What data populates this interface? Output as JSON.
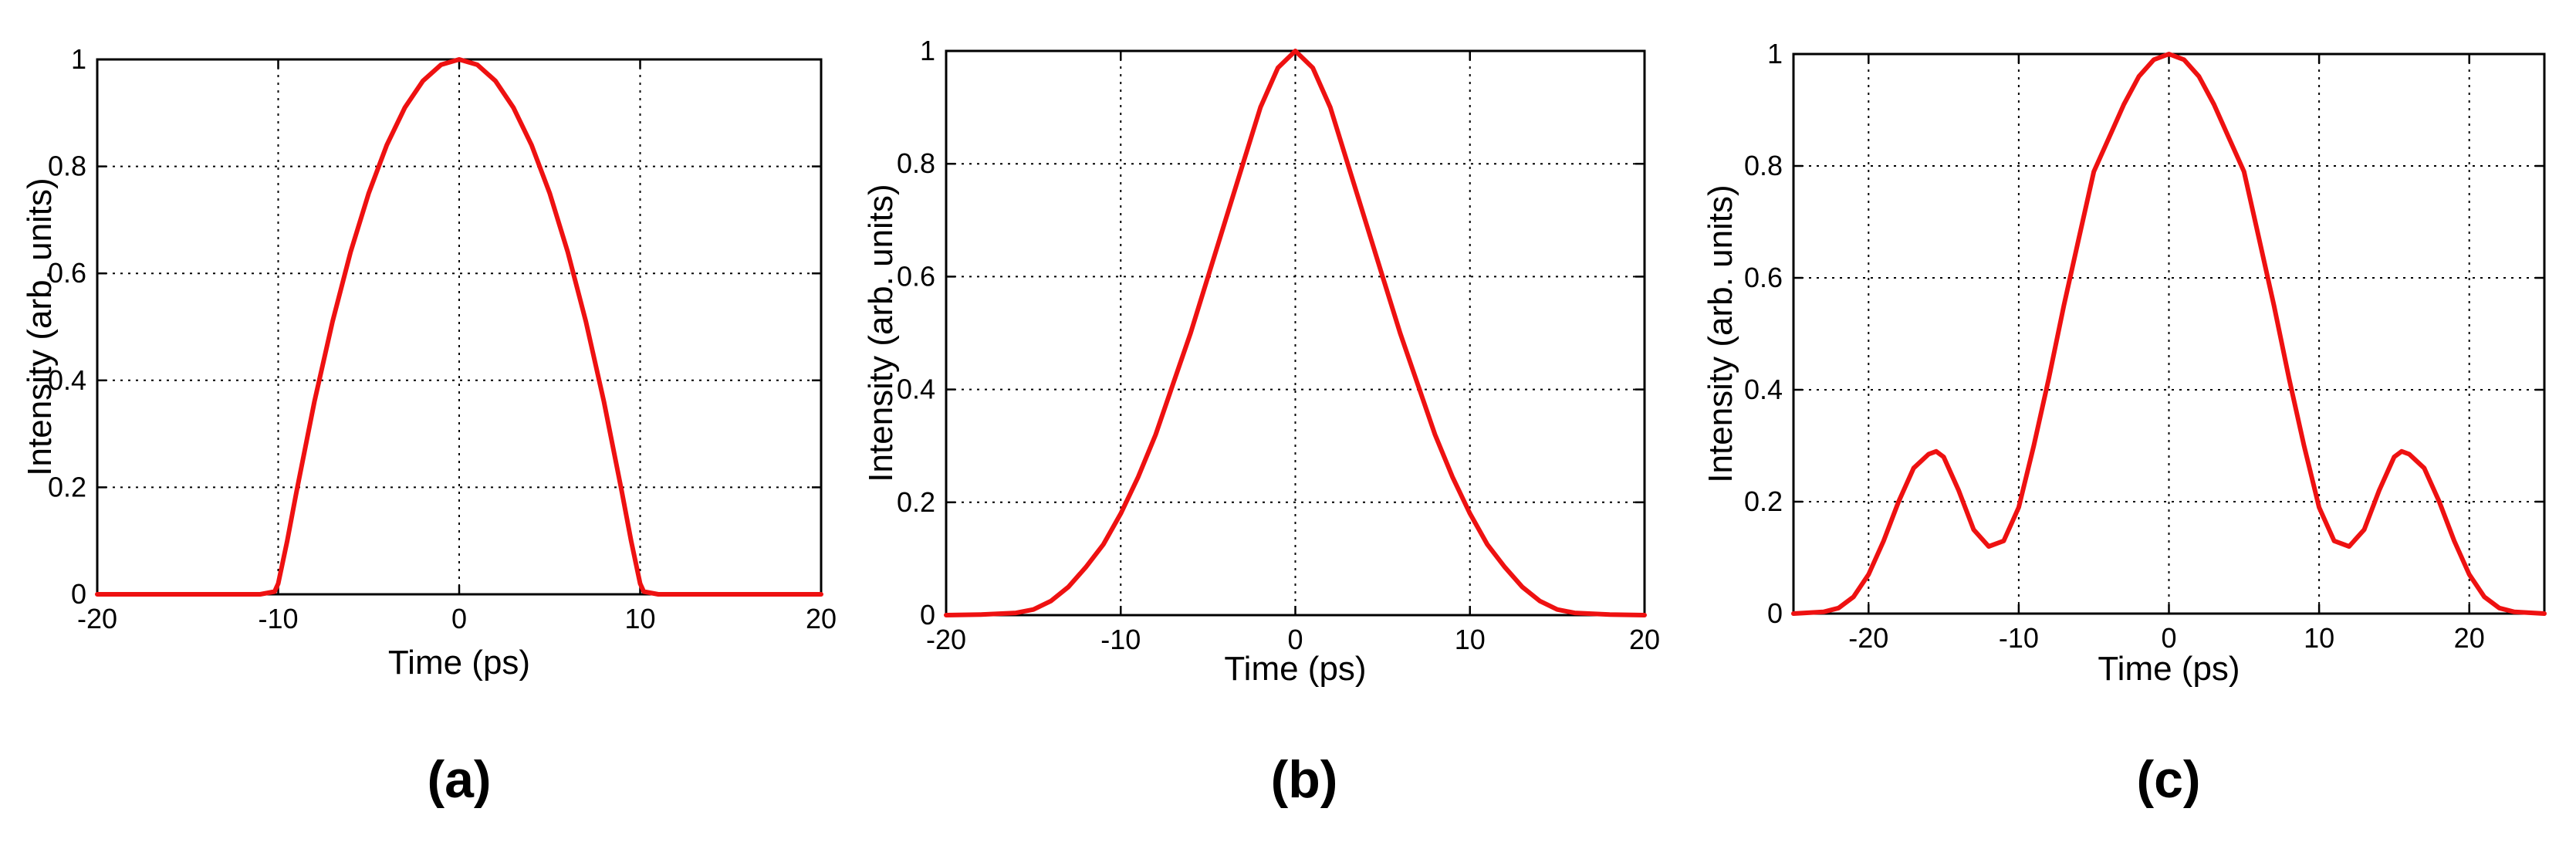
{
  "colors": {
    "curve": "#ee1111",
    "axis": "#000000",
    "background": "#ffffff"
  },
  "chart_data": [
    {
      "type": "line",
      "panel_label": "(a)",
      "xlabel": "Time (ps)",
      "ylabel": "Intensity (arb. units)",
      "xlim": [
        -20,
        20
      ],
      "ylim": [
        0,
        1
      ],
      "xticks": [
        -20,
        -10,
        0,
        10,
        20
      ],
      "xtick_labels": [
        "-20",
        "-10",
        "0",
        "10",
        "20"
      ],
      "yticks": [
        0,
        0.2,
        0.4,
        0.6,
        0.8,
        1
      ],
      "ytick_labels": [
        "0",
        "0.2",
        "0.4",
        "0.6",
        "0.8",
        "1"
      ],
      "grid": true,
      "series": [
        {
          "name": "intensity",
          "x": [
            -20,
            -15,
            -11,
            -10.2,
            -10,
            -9.5,
            -9,
            -8,
            -7,
            -6,
            -5,
            -4,
            -3,
            -2,
            -1,
            0,
            1,
            2,
            3,
            4,
            5,
            6,
            7,
            8,
            9,
            9.5,
            10,
            10.2,
            11,
            15,
            20
          ],
          "y": [
            0,
            0,
            0,
            0.005,
            0.02,
            0.1,
            0.19,
            0.36,
            0.51,
            0.64,
            0.75,
            0.84,
            0.91,
            0.96,
            0.99,
            1.0,
            0.99,
            0.96,
            0.91,
            0.84,
            0.75,
            0.64,
            0.51,
            0.36,
            0.19,
            0.1,
            0.02,
            0.005,
            0,
            0,
            0
          ]
        }
      ]
    },
    {
      "type": "line",
      "panel_label": "(b)",
      "xlabel": "Time (ps)",
      "ylabel": "Intensity (arb. units)",
      "xlim": [
        -20,
        20
      ],
      "ylim": [
        0,
        1
      ],
      "xticks": [
        -20,
        -10,
        0,
        10,
        20
      ],
      "xtick_labels": [
        "-20",
        "-10",
        "0",
        "10",
        "20"
      ],
      "yticks": [
        0,
        0.2,
        0.4,
        0.6,
        0.8,
        1
      ],
      "ytick_labels": [
        "0",
        "0.2",
        "0.4",
        "0.6",
        "0.8",
        "1"
      ],
      "grid": true,
      "series": [
        {
          "name": "intensity",
          "x": [
            -20,
            -18,
            -16,
            -15,
            -14,
            -13,
            -12,
            -11,
            -10,
            -9,
            -8,
            -7,
            -6,
            -5,
            -4,
            -3,
            -2,
            -1,
            0,
            1,
            2,
            3,
            4,
            5,
            6,
            7,
            8,
            9,
            10,
            11,
            12,
            13,
            14,
            15,
            16,
            18,
            20
          ],
          "y": [
            0,
            0.001,
            0.004,
            0.01,
            0.025,
            0.05,
            0.085,
            0.125,
            0.18,
            0.245,
            0.32,
            0.41,
            0.5,
            0.6,
            0.7,
            0.8,
            0.9,
            0.97,
            1.0,
            0.97,
            0.9,
            0.8,
            0.7,
            0.6,
            0.5,
            0.41,
            0.32,
            0.245,
            0.18,
            0.125,
            0.085,
            0.05,
            0.025,
            0.01,
            0.004,
            0.001,
            0
          ]
        }
      ]
    },
    {
      "type": "line",
      "panel_label": "(c)",
      "xlabel": "Time (ps)",
      "ylabel": "Intensity (arb. units)",
      "xlim": [
        -25,
        25
      ],
      "ylim": [
        0,
        1
      ],
      "xticks": [
        -20,
        -10,
        0,
        10,
        20
      ],
      "xtick_labels": [
        "-20",
        "-10",
        "0",
        "10",
        "20"
      ],
      "yticks": [
        0,
        0.2,
        0.4,
        0.6,
        0.8,
        1
      ],
      "ytick_labels": [
        "0",
        "0.2",
        "0.4",
        "0.6",
        "0.8",
        "1"
      ],
      "grid": true,
      "series": [
        {
          "name": "intensity",
          "x": [
            -25,
            -23,
            -22,
            -21,
            -20,
            -19,
            -18,
            -17,
            -16,
            -15.5,
            -15,
            -14,
            -13,
            -12,
            -11,
            -10,
            -9,
            -8,
            -7,
            -6,
            -5,
            -4,
            -3,
            -2,
            -1,
            0,
            1,
            2,
            3,
            4,
            5,
            6,
            7,
            8,
            9,
            10,
            11,
            12,
            13,
            14,
            15,
            15.5,
            16,
            17,
            18,
            19,
            20,
            21,
            22,
            23,
            25
          ],
          "y": [
            0,
            0.003,
            0.01,
            0.03,
            0.07,
            0.13,
            0.2,
            0.26,
            0.285,
            0.29,
            0.28,
            0.22,
            0.15,
            0.12,
            0.13,
            0.19,
            0.3,
            0.42,
            0.55,
            0.67,
            0.79,
            0.85,
            0.91,
            0.96,
            0.99,
            1.0,
            0.99,
            0.96,
            0.91,
            0.85,
            0.79,
            0.67,
            0.55,
            0.42,
            0.3,
            0.19,
            0.13,
            0.12,
            0.15,
            0.22,
            0.28,
            0.29,
            0.285,
            0.26,
            0.2,
            0.13,
            0.07,
            0.03,
            0.01,
            0.003,
            0
          ]
        }
      ]
    }
  ]
}
